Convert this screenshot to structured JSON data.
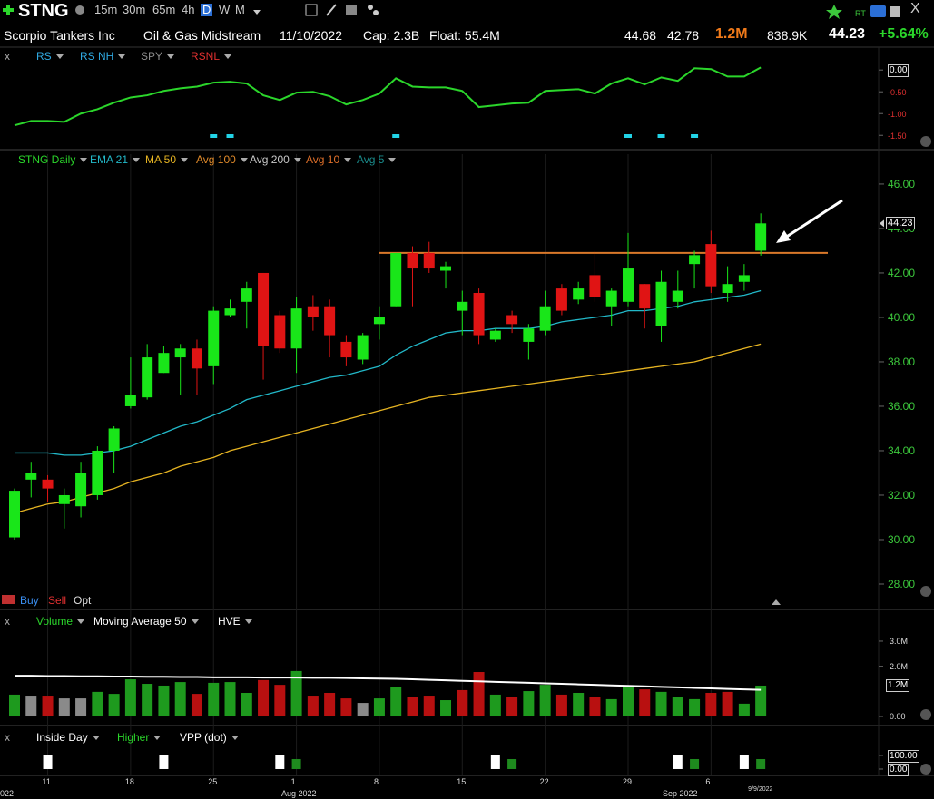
{
  "toolbar": {
    "symbol": "STNG",
    "timeframes": [
      "15m",
      "30m",
      "65m",
      "4h",
      "D",
      "W",
      "M"
    ],
    "active_timeframe": 4,
    "rt": "RT",
    "close": "X"
  },
  "quote": {
    "name": "Scorpio Tankers Inc",
    "sector": "Oil & Gas Midstream",
    "date": "11/10/2022",
    "cap": "Cap: 2.3B",
    "float": "Float: 55.4M",
    "high": "44.68",
    "low": "42.78",
    "volume": "1.2M",
    "avg_volume": "838.9K",
    "last": "44.23",
    "change": "+5.64%"
  },
  "rs_pane": {
    "close": "x",
    "legend": [
      {
        "name": "RS",
        "color": "#2fa8e0"
      },
      {
        "name": "RS NH",
        "color": "#2fa8e0"
      },
      {
        "name": "SPY",
        "color": "#8c8c8c"
      },
      {
        "name": "RSNL",
        "color": "#e03030"
      }
    ],
    "line_color": "#2bd62b",
    "values": [
      -1.27,
      -1.17,
      -1.17,
      -1.19,
      -1.0,
      -0.9,
      -0.75,
      -0.63,
      -0.58,
      -0.48,
      -0.42,
      -0.38,
      -0.29,
      -0.27,
      -0.31,
      -0.58,
      -0.69,
      -0.52,
      -0.5,
      -0.6,
      -0.79,
      -0.69,
      -0.54,
      -0.19,
      -0.38,
      -0.4,
      -0.4,
      -0.48,
      -0.85,
      -0.81,
      -0.77,
      -0.75,
      -0.48,
      -0.46,
      -0.44,
      -0.54,
      -0.31,
      -0.19,
      -0.33,
      -0.17,
      -0.25,
      0.04,
      0.02,
      -0.15,
      -0.15,
      0.06
    ],
    "new_high_days": [
      12,
      13,
      23,
      37,
      39,
      41
    ],
    "marker_color": "#22d3e6",
    "ylim": [
      -1.62,
      0.15
    ],
    "yticks": [
      {
        "value": 0,
        "label": "0.00"
      },
      {
        "value": -0.5,
        "label": "-0.50"
      },
      {
        "value": -1,
        "label": "-1.00"
      },
      {
        "value": -1.5,
        "label": "-1.50"
      }
    ]
  },
  "chart_data": {
    "type": "candlestick",
    "title": "STNG Daily",
    "title_color": "#2bd62b",
    "categories": [
      null,
      null,
      "11",
      null,
      null,
      null,
      null,
      "18",
      null,
      null,
      null,
      null,
      "25",
      null,
      null,
      null,
      null,
      "1",
      null,
      null,
      null,
      null,
      "8",
      null,
      null,
      null,
      null,
      "15",
      null,
      null,
      null,
      null,
      "22",
      null,
      null,
      null,
      null,
      "29",
      null,
      null,
      null,
      null,
      "6",
      null,
      null,
      null
    ],
    "open": [
      30.1,
      32.7,
      32.7,
      31.6,
      31.5,
      32.0,
      34.0,
      36.0,
      36.4,
      37.5,
      38.2,
      38.6,
      37.8,
      40.1,
      40.7,
      42.0,
      40.1,
      38.6,
      40.5,
      40.5,
      38.9,
      38.1,
      39.7,
      40.5,
      42.9,
      42.9,
      42.1,
      40.3,
      41.1,
      39.0,
      40.1,
      38.9,
      39.4,
      41.3,
      40.8,
      41.9,
      40.5,
      40.7,
      41.5,
      39.6,
      40.7,
      42.4,
      43.3,
      41.1,
      41.6,
      43.0
    ],
    "high": [
      32.3,
      33.5,
      32.9,
      32.3,
      33.5,
      34.2,
      35.1,
      38.2,
      38.8,
      38.7,
      38.8,
      39.0,
      40.5,
      40.8,
      41.6,
      42.0,
      40.3,
      40.9,
      41.0,
      40.8,
      39.2,
      39.3,
      40.5,
      42.9,
      43.2,
      43.4,
      42.5,
      41.2,
      41.3,
      39.5,
      40.3,
      39.7,
      41.2,
      41.5,
      41.6,
      43.0,
      41.3,
      43.8,
      41.5,
      42.1,
      42.1,
      43.0,
      43.9,
      42.3,
      42.4,
      44.68
    ],
    "low": [
      30.0,
      31.9,
      31.7,
      30.5,
      31.0,
      31.8,
      33.0,
      35.9,
      36.3,
      37.5,
      36.5,
      36.5,
      37.0,
      40.0,
      39.5,
      37.2,
      38.4,
      37.5,
      39.4,
      38.2,
      37.8,
      37.9,
      39.0,
      40.5,
      40.5,
      42.0,
      41.3,
      39.2,
      38.8,
      38.9,
      39.3,
      38.1,
      39.2,
      40.1,
      40.6,
      40.7,
      39.6,
      40.5,
      39.5,
      38.9,
      40.4,
      41.3,
      41.1,
      40.7,
      41.2,
      42.78
    ],
    "close": [
      32.2,
      33.0,
      32.3,
      32.0,
      33.0,
      34.0,
      35.0,
      36.5,
      38.2,
      38.4,
      38.6,
      37.7,
      40.3,
      40.4,
      41.3,
      38.7,
      38.6,
      40.4,
      40.0,
      39.2,
      38.2,
      39.2,
      40.0,
      42.9,
      42.2,
      42.2,
      42.3,
      40.7,
      39.2,
      39.4,
      39.7,
      39.5,
      40.5,
      40.3,
      41.3,
      40.9,
      41.2,
      42.2,
      40.4,
      41.6,
      41.2,
      42.8,
      41.4,
      41.5,
      41.9,
      44.23
    ],
    "up_color": "#19e619",
    "down_color": "#e01414",
    "indicators": [
      {
        "name": "EMA 21",
        "color": "#22b8c8",
        "values": [
          33.9,
          33.9,
          33.9,
          33.8,
          33.8,
          33.9,
          34.0,
          34.2,
          34.5,
          34.8,
          35.1,
          35.3,
          35.6,
          35.9,
          36.3,
          36.5,
          36.7,
          36.9,
          37.1,
          37.3,
          37.4,
          37.6,
          37.8,
          38.3,
          38.7,
          39.0,
          39.3,
          39.4,
          39.4,
          39.5,
          39.5,
          39.5,
          39.6,
          39.8,
          39.9,
          40.0,
          40.1,
          40.3,
          40.3,
          40.4,
          40.5,
          40.7,
          40.8,
          40.9,
          41.0,
          41.2
        ]
      },
      {
        "name": "MA 50",
        "color": "#e6b422",
        "values": [
          31.2,
          31.4,
          31.6,
          31.7,
          31.9,
          32.1,
          32.3,
          32.6,
          32.8,
          33.0,
          33.3,
          33.5,
          33.7,
          34.0,
          34.2,
          34.4,
          34.6,
          34.8,
          35.0,
          35.2,
          35.4,
          35.6,
          35.8,
          36.0,
          36.2,
          36.4,
          36.5,
          36.6,
          36.7,
          36.8,
          36.9,
          37.0,
          37.1,
          37.2,
          37.3,
          37.4,
          37.5,
          37.6,
          37.7,
          37.8,
          37.9,
          38.0,
          38.2,
          38.4,
          38.6,
          38.8
        ]
      },
      {
        "name": "Avg 100",
        "color": "#e08a2a"
      },
      {
        "name": "Avg 200",
        "color": "#c8c8c8"
      },
      {
        "name": "Avg 10",
        "color": "#e0702a"
      },
      {
        "name": "Avg 5",
        "color": "#1a8c8c"
      }
    ],
    "resistance": 42.9,
    "resistance_color": "#d9782a",
    "ylim": [
      27.02,
      46.61
    ],
    "yticks": [
      {
        "value": 46,
        "label": "46.00"
      },
      {
        "value": 44,
        "label": "44.00"
      },
      {
        "value": 42,
        "label": "42.00"
      },
      {
        "value": 40,
        "label": "40.00"
      },
      {
        "value": 38,
        "label": "38.00"
      },
      {
        "value": 36,
        "label": "36.00"
      },
      {
        "value": 34,
        "label": "34.00"
      },
      {
        "value": 32,
        "label": "32.00"
      },
      {
        "value": 30,
        "label": "30.00"
      },
      {
        "value": 28,
        "label": "28.00"
      }
    ],
    "tick_color": "#3cc83c",
    "x_months": [
      "022",
      "Aug 2022",
      "Sep 2022"
    ],
    "last_date": "9/9/2022",
    "trade_buttons": [
      "Buy",
      "Sell",
      "Opt"
    ]
  },
  "volume_pane": {
    "close": "x",
    "legend": [
      "Volume",
      "Moving Average 50",
      "HVE"
    ],
    "values": [
      0.87,
      0.83,
      0.83,
      0.72,
      0.72,
      0.98,
      0.9,
      1.48,
      1.3,
      1.23,
      1.37,
      0.9,
      1.34,
      1.37,
      0.94,
      1.45,
      1.26,
      1.81,
      0.83,
      0.94,
      0.72,
      0.54,
      0.72,
      1.19,
      0.79,
      0.83,
      0.65,
      1.05,
      1.77,
      0.87,
      0.79,
      1.01,
      1.26,
      0.87,
      0.94,
      0.76,
      0.69,
      1.16,
      1.08,
      0.98,
      0.79,
      0.69,
      0.94,
      0.98,
      0.51,
      1.23
    ],
    "palette": [
      "#1e9a1e",
      "#b81010",
      "#8a8a8a"
    ],
    "color_index": [
      0,
      2,
      1,
      2,
      2,
      0,
      0,
      0,
      0,
      0,
      0,
      1,
      0,
      0,
      0,
      1,
      1,
      0,
      1,
      1,
      1,
      2,
      0,
      0,
      1,
      1,
      0,
      1,
      1,
      0,
      1,
      0,
      0,
      1,
      0,
      1,
      0,
      0,
      1,
      0,
      0,
      0,
      1,
      1,
      0,
      0
    ],
    "ma50": [
      1.62,
      1.62,
      1.61,
      1.61,
      1.6,
      1.6,
      1.59,
      1.59,
      1.58,
      1.58,
      1.57,
      1.57,
      1.56,
      1.56,
      1.56,
      1.55,
      1.55,
      1.55,
      1.54,
      1.54,
      1.53,
      1.52,
      1.51,
      1.5,
      1.48,
      1.46,
      1.44,
      1.42,
      1.4,
      1.38,
      1.36,
      1.34,
      1.32,
      1.3,
      1.28,
      1.26,
      1.24,
      1.22,
      1.2,
      1.18,
      1.16,
      1.14,
      1.12,
      1.1,
      1.08,
      1.06
    ],
    "ylim": [
      -0.18,
      3.36
    ],
    "yticks": [
      {
        "value": 3,
        "label": "3.0M"
      },
      {
        "value": 2,
        "label": "2.0M"
      },
      {
        "value": 0,
        "label": "0.00"
      }
    ]
  },
  "signal_pane": {
    "close": "x",
    "legend": [
      "Inside Day",
      "Higher",
      "VPP (dot)"
    ],
    "inside_day": [
      2,
      9,
      16,
      29,
      40,
      44
    ],
    "higher": [
      17,
      30,
      41,
      45
    ],
    "ylim": [
      -46.7,
      153
    ],
    "yticks": [
      {
        "value": 100,
        "label": "100.00"
      },
      {
        "value": 0,
        "label": "0.00"
      }
    ]
  }
}
